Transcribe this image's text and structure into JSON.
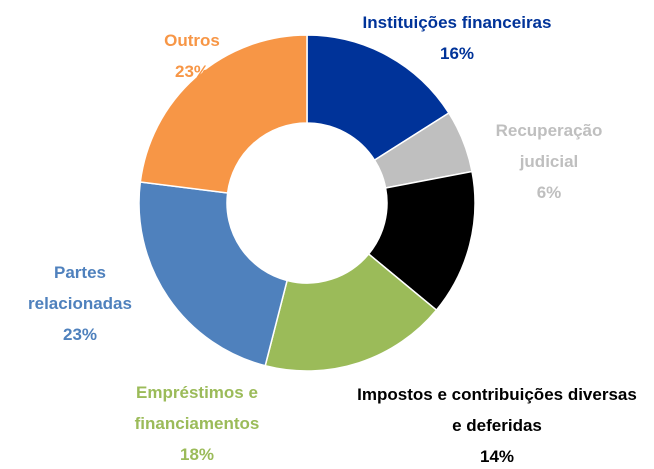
{
  "chart_data": {
    "type": "donut",
    "categories": [
      "Instituições financeiras",
      "Recuperação judicial",
      "Impostos e contribuições diversas e deferidas",
      "Empréstimos e financiamentos",
      "Partes relacionadas",
      "Outros"
    ],
    "values": [
      16,
      6,
      14,
      18,
      23,
      23
    ],
    "value_labels": [
      "16%",
      "6%",
      "14%",
      "18%",
      "23%",
      "23%"
    ],
    "colors": [
      "#003399",
      "#bfbfbf",
      "#000000",
      "#9bbb59",
      "#4f81bd",
      "#f79646"
    ]
  }
}
